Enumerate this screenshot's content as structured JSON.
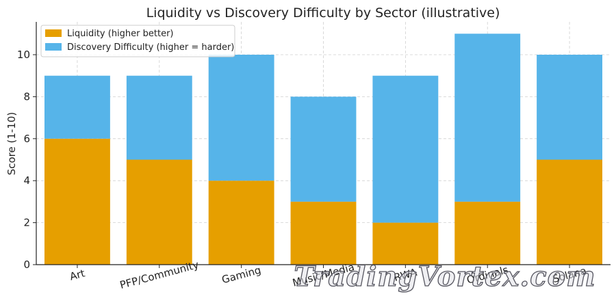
{
  "chart_data": {
    "type": "bar",
    "stacked": true,
    "title": "Liquidity vs Discovery Difficulty by Sector (illustrative)",
    "xlabel": "",
    "ylabel": "Score (1-10)",
    "ylim": [
      0,
      11.55
    ],
    "yticks": [
      0,
      2,
      4,
      6,
      8,
      10
    ],
    "grid": true,
    "legend_position": "top-left",
    "categories": [
      "Art",
      "PFP/Community",
      "Gaming",
      "Music/Media",
      "RWA",
      "Ordinals",
      "Solana"
    ],
    "series": [
      {
        "name": "Liquidity (higher better)",
        "color": "#E69F00",
        "values": [
          6,
          5,
          4,
          3,
          2,
          3,
          5
        ]
      },
      {
        "name": "Discovery Difficulty (higher = harder)",
        "color": "#56B4E9",
        "values": [
          3,
          4,
          6,
          5,
          7,
          8,
          5
        ]
      }
    ]
  },
  "watermark": "TradingVortex.com"
}
